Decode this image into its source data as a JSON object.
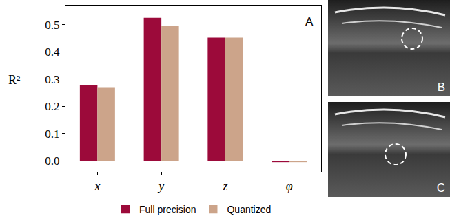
{
  "chart_data": {
    "type": "bar",
    "panel_label": "A",
    "y_label": "R²",
    "categories": [
      "x",
      "y",
      "z",
      "φ"
    ],
    "series": [
      {
        "name": "Full precision",
        "color": "#9c0a3a",
        "values": [
          0.278,
          0.525,
          0.452,
          -0.005
        ]
      },
      {
        "name": "Quantized",
        "color": "#cca48a",
        "values": [
          0.27,
          0.495,
          0.452,
          -0.005
        ]
      }
    ],
    "ylim": [
      -0.04,
      0.57
    ],
    "yticks": [
      {
        "value": 0,
        "label": "0.0"
      },
      0.1,
      0.2,
      0.3,
      0.4,
      0.5
    ],
    "legend": "bottom",
    "grid": false
  },
  "panels": [
    {
      "label": "B"
    },
    {
      "label": "C"
    }
  ]
}
